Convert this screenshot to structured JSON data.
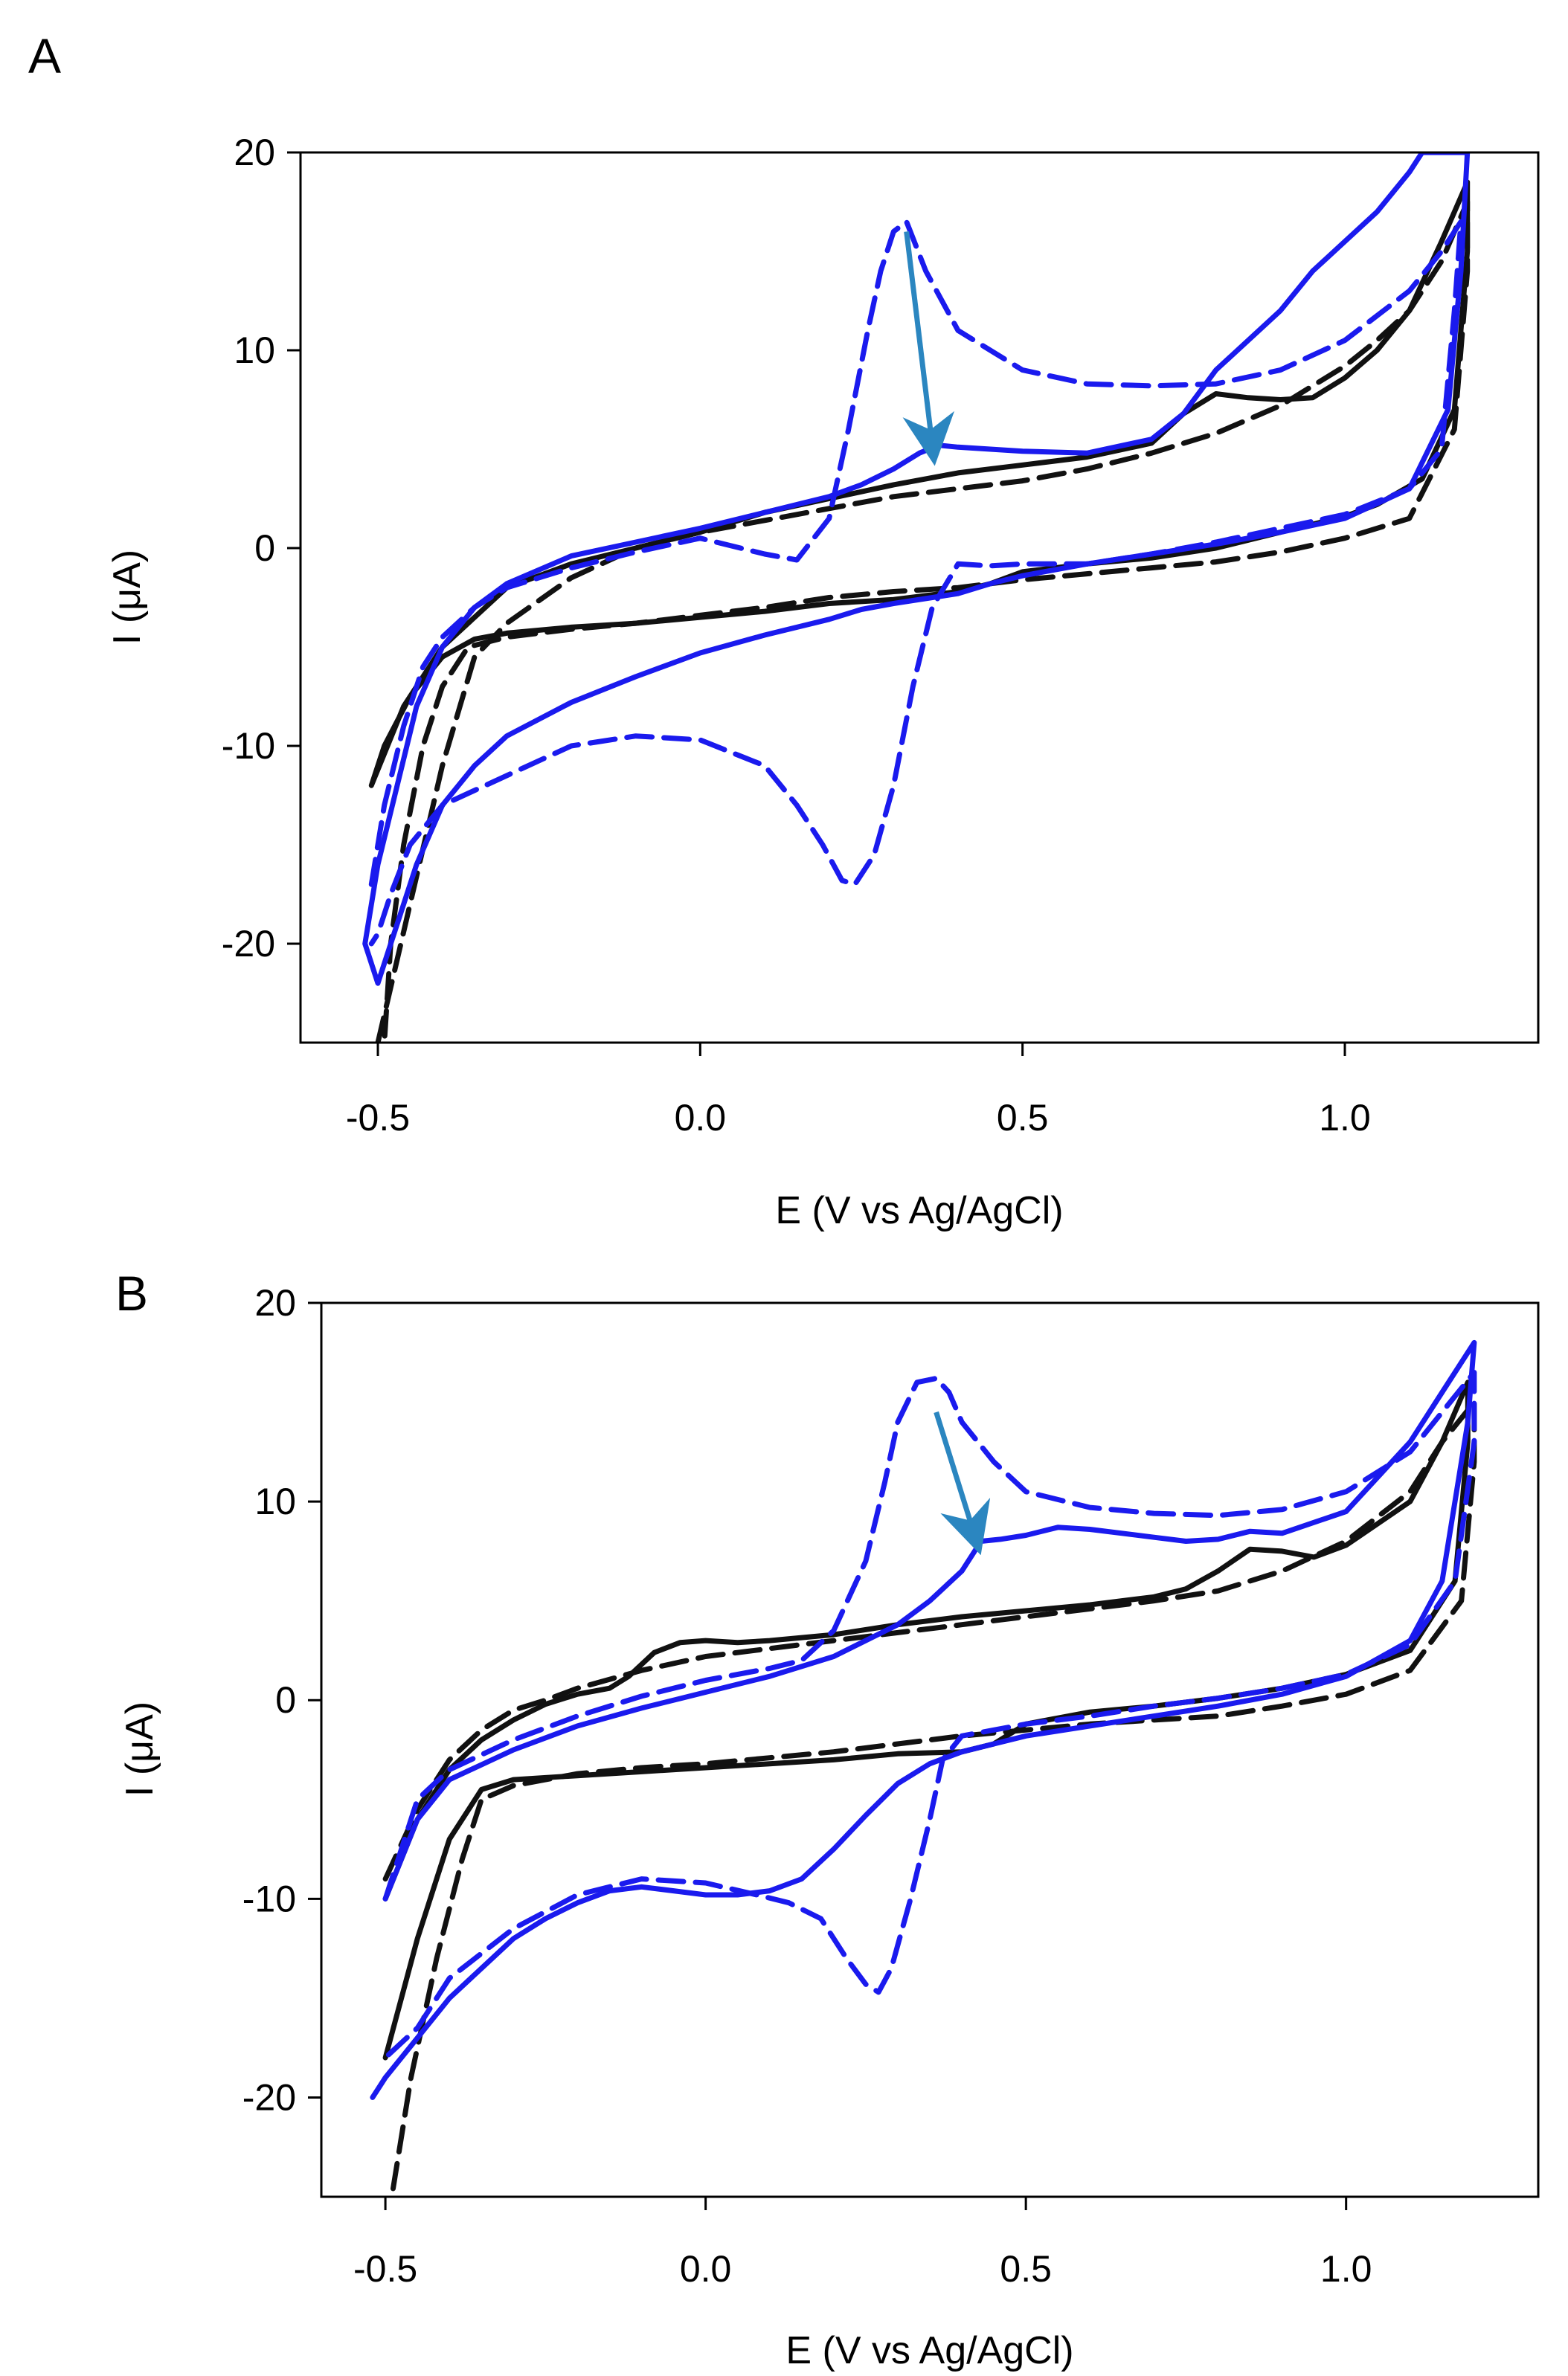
{
  "colors": {
    "black_trace": "#111111",
    "blue_trace": "#1a1aee",
    "arrow": "#2b86c0"
  },
  "chart_data": [
    {
      "type": "line",
      "panel_label": "A",
      "xlabel": "E (V vs Ag/AgCl)",
      "ylabel": "I (μA)",
      "xlim": [
        -0.62,
        1.3
      ],
      "ylim": [
        -25,
        20
      ],
      "xticks": [
        -0.5,
        0.0,
        0.5,
        1.0
      ],
      "xtick_labels": [
        "-0.5",
        "0.0",
        "0.5",
        "1.0"
      ],
      "yticks": [
        20,
        10,
        0,
        -10,
        -20
      ],
      "ytick_labels": [
        "20",
        "10",
        "0",
        "-10",
        "-20"
      ],
      "arrow": {
        "from": [
          0.32,
          16
        ],
        "to": [
          0.36,
          5.2
        ]
      },
      "series": [
        {
          "name": "black solid",
          "color": "#111111",
          "dash": "solid",
          "x": [
            -0.51,
            -0.46,
            -0.4,
            -0.3,
            -0.2,
            -0.1,
            0.0,
            0.1,
            0.2,
            0.3,
            0.4,
            0.5,
            0.6,
            0.7,
            0.75,
            0.8,
            0.85,
            0.9,
            0.95,
            1.0,
            1.05,
            1.1,
            1.15,
            1.19,
            1.19,
            1.17,
            1.12,
            1.05,
            1.0,
            0.9,
            0.8,
            0.7,
            0.6,
            0.5,
            0.45,
            0.4,
            0.3,
            0.2,
            0.1,
            0.0,
            -0.1,
            -0.2,
            -0.3,
            -0.35,
            -0.4,
            -0.45,
            -0.49,
            -0.51
          ],
          "y": [
            -12,
            -8,
            -5,
            -2,
            -0.8,
            0,
            0.8,
            1.8,
            2.5,
            3.2,
            3.8,
            4.2,
            4.6,
            5.3,
            6.8,
            7.8,
            7.6,
            7.5,
            7.6,
            8.6,
            10,
            12,
            15.5,
            18.5,
            15,
            7,
            3.5,
            2.2,
            1.6,
            0.8,
            0,
            -0.5,
            -0.8,
            -1.2,
            -1.8,
            -2.2,
            -2.6,
            -2.8,
            -3.2,
            -3.5,
            -3.8,
            -4.0,
            -4.3,
            -4.6,
            -5.5,
            -7.5,
            -10,
            -12
          ]
        },
        {
          "name": "black dashed",
          "color": "#111111",
          "dash": "dashed",
          "x": [
            -0.5,
            -0.45,
            -0.4,
            -0.35,
            -0.3,
            -0.2,
            -0.1,
            0.0,
            0.1,
            0.2,
            0.3,
            0.4,
            0.5,
            0.6,
            0.7,
            0.8,
            0.9,
            1.0,
            1.05,
            1.1,
            1.15,
            1.19,
            1.19,
            1.17,
            1.1,
            1.0,
            0.9,
            0.8,
            0.7,
            0.6,
            0.5,
            0.4,
            0.3,
            0.2,
            0.1,
            0.0,
            -0.1,
            -0.2,
            -0.3,
            -0.36,
            -0.4,
            -0.43,
            -0.46,
            -0.48,
            -0.49
          ],
          "y": [
            -25,
            -18,
            -11,
            -5.5,
            -3.8,
            -1.5,
            0,
            0.8,
            1.4,
            2.0,
            2.6,
            3.0,
            3.4,
            4.0,
            4.8,
            5.8,
            7.2,
            9.2,
            10.5,
            12,
            14.5,
            17.5,
            14,
            6,
            1.5,
            0.5,
            -0.2,
            -0.7,
            -1.0,
            -1.3,
            -1.6,
            -2.0,
            -2.2,
            -2.5,
            -3.0,
            -3.4,
            -3.8,
            -4.1,
            -4.5,
            -5,
            -7,
            -10,
            -15,
            -20,
            -25
          ]
        },
        {
          "name": "blue solid",
          "color": "#1a1aee",
          "dash": "solid",
          "x": [
            -0.52,
            -0.5,
            -0.47,
            -0.44,
            -0.4,
            -0.35,
            -0.3,
            -0.2,
            -0.1,
            0.0,
            0.1,
            0.2,
            0.25,
            0.3,
            0.34,
            0.37,
            0.4,
            0.5,
            0.6,
            0.7,
            0.75,
            0.8,
            0.9,
            0.95,
            1.0,
            1.05,
            1.1,
            1.12,
            1.19,
            1.18,
            1.16,
            1.1,
            1.0,
            0.9,
            0.8,
            0.7,
            0.6,
            0.5,
            0.45,
            0.4,
            0.3,
            0.25,
            0.2,
            0.1,
            0.0,
            -0.1,
            -0.2,
            -0.3,
            -0.35,
            -0.4,
            -0.44,
            -0.47,
            -0.5,
            -0.52
          ],
          "y": [
            -20,
            -16,
            -12,
            -8,
            -5,
            -3,
            -1.8,
            -0.4,
            0.3,
            1.0,
            1.8,
            2.6,
            3.2,
            4.0,
            4.8,
            5.2,
            5.1,
            4.9,
            4.8,
            5.5,
            6.8,
            9,
            12,
            14,
            15.5,
            17,
            19,
            20,
            20,
            14,
            7,
            3,
            1.5,
            0.8,
            0.2,
            -0.3,
            -0.8,
            -1.4,
            -1.8,
            -2.3,
            -2.8,
            -3.1,
            -3.6,
            -4.4,
            -5.3,
            -6.5,
            -7.8,
            -9.5,
            -11,
            -13,
            -16,
            -19,
            -22,
            -20
          ]
        },
        {
          "name": "blue dashed",
          "color": "#1a1aee",
          "dash": "dashed",
          "x": [
            -0.51,
            -0.49,
            -0.46,
            -0.43,
            -0.4,
            -0.35,
            -0.3,
            -0.2,
            -0.1,
            0.0,
            0.1,
            0.15,
            0.2,
            0.23,
            0.26,
            0.28,
            0.3,
            0.32,
            0.35,
            0.4,
            0.5,
            0.6,
            0.7,
            0.8,
            0.9,
            1.0,
            1.1,
            1.15,
            1.18,
            1.17,
            1.15,
            1.1,
            1.0,
            0.9,
            0.8,
            0.7,
            0.6,
            0.5,
            0.45,
            0.4,
            0.36,
            0.33,
            0.3,
            0.27,
            0.24,
            0.22,
            0.19,
            0.15,
            0.1,
            0.0,
            -0.1,
            -0.2,
            -0.3,
            -0.4,
            -0.45,
            -0.48,
            -0.5,
            -0.51
          ],
          "y": [
            -17,
            -13,
            -9,
            -6,
            -4.5,
            -3,
            -2,
            -1,
            -0.2,
            0.5,
            -0.3,
            -0.6,
            1.5,
            6,
            11,
            14,
            16,
            16.5,
            14,
            11,
            9,
            8.3,
            8.2,
            8.3,
            9,
            10.5,
            13,
            15,
            16.5,
            12,
            5,
            3,
            1.7,
            1,
            0.3,
            -0.3,
            -0.8,
            -0.8,
            -0.9,
            -0.8,
            -3,
            -7,
            -12,
            -15.5,
            -17,
            -16.8,
            -15,
            -13,
            -11,
            -9.7,
            -9.5,
            -10,
            -11.5,
            -13,
            -15,
            -17.5,
            -19.5,
            -20
          ]
        }
      ]
    },
    {
      "type": "line",
      "panel_label": "B",
      "xlabel": "E (V vs Ag/AgCl)",
      "ylabel": "I (μA)",
      "xlim": [
        -0.6,
        1.3
      ],
      "ylim": [
        -25,
        20
      ],
      "xticks": [
        -0.5,
        0.0,
        0.5,
        1.0
      ],
      "xtick_labels": [
        "-0.5",
        "0.0",
        "0.5",
        "1.0"
      ],
      "yticks": [
        20,
        10,
        0,
        -10,
        -20
      ],
      "ytick_labels": [
        "20",
        "10",
        "0",
        "-10",
        "-20"
      ],
      "arrow": {
        "from": [
          0.36,
          14.5
        ],
        "to": [
          0.42,
          8.3
        ]
      },
      "series": [
        {
          "name": "black solid",
          "color": "#111111",
          "dash": "solid",
          "x": [
            -0.5,
            -0.45,
            -0.4,
            -0.35,
            -0.3,
            -0.25,
            -0.2,
            -0.15,
            -0.12,
            -0.08,
            -0.04,
            0.0,
            0.05,
            0.1,
            0.2,
            0.3,
            0.4,
            0.5,
            0.6,
            0.7,
            0.75,
            0.8,
            0.85,
            0.9,
            0.95,
            1.0,
            1.1,
            1.15,
            1.19,
            1.19,
            1.17,
            1.1,
            1.0,
            0.9,
            0.8,
            0.7,
            0.6,
            0.5,
            0.45,
            0.4,
            0.3,
            0.2,
            0.1,
            0.0,
            -0.1,
            -0.2,
            -0.3,
            -0.35,
            -0.4,
            -0.45,
            -0.5
          ],
          "y": [
            -10,
            -6,
            -3.5,
            -2,
            -1,
            -0.2,
            0.3,
            0.6,
            1.2,
            2.4,
            2.9,
            3.0,
            2.9,
            3.0,
            3.3,
            3.8,
            4.2,
            4.5,
            4.8,
            5.2,
            5.6,
            6.5,
            7.6,
            7.5,
            7.2,
            7.8,
            10,
            13,
            16,
            13,
            6,
            2.5,
            1.3,
            0.6,
            0.1,
            -0.3,
            -0.6,
            -1.2,
            -2.2,
            -2.6,
            -2.7,
            -3.0,
            -3.2,
            -3.4,
            -3.6,
            -3.8,
            -4.0,
            -4.5,
            -7,
            -12,
            -18
          ]
        },
        {
          "name": "black dashed",
          "color": "#111111",
          "dash": "dashed",
          "x": [
            -0.5,
            -0.45,
            -0.4,
            -0.35,
            -0.3,
            -0.25,
            -0.2,
            -0.1,
            0.0,
            0.1,
            0.2,
            0.3,
            0.4,
            0.5,
            0.6,
            0.7,
            0.8,
            0.9,
            1.0,
            1.1,
            1.15,
            1.2,
            1.2,
            1.18,
            1.1,
            1.0,
            0.9,
            0.8,
            0.7,
            0.6,
            0.5,
            0.4,
            0.3,
            0.2,
            0.1,
            0.0,
            -0.1,
            -0.2,
            -0.3,
            -0.35,
            -0.38,
            -0.42,
            -0.46,
            -0.49
          ],
          "y": [
            -9,
            -5.5,
            -3,
            -1.5,
            -0.5,
            0,
            0.6,
            1.5,
            2.2,
            2.6,
            3.0,
            3.4,
            3.8,
            4.2,
            4.6,
            5.0,
            5.5,
            6.5,
            8,
            10.5,
            13,
            15,
            12,
            5,
            1.5,
            0.3,
            -0.3,
            -0.8,
            -1.0,
            -1.2,
            -1.5,
            -1.8,
            -2.2,
            -2.6,
            -2.9,
            -3.2,
            -3.4,
            -3.7,
            -4.3,
            -5,
            -8,
            -13,
            -19,
            -25
          ]
        },
        {
          "name": "blue solid",
          "color": "#1a1aee",
          "dash": "solid",
          "x": [
            -0.5,
            -0.45,
            -0.4,
            -0.3,
            -0.2,
            -0.1,
            0.0,
            0.1,
            0.2,
            0.3,
            0.35,
            0.4,
            0.43,
            0.46,
            0.5,
            0.55,
            0.6,
            0.65,
            0.7,
            0.75,
            0.8,
            0.85,
            0.9,
            1.0,
            1.1,
            1.15,
            1.2,
            1.19,
            1.15,
            1.1,
            1.0,
            0.9,
            0.8,
            0.7,
            0.6,
            0.5,
            0.45,
            0.4,
            0.35,
            0.3,
            0.25,
            0.2,
            0.15,
            0.1,
            0.05,
            0.0,
            -0.05,
            -0.1,
            -0.15,
            -0.2,
            -0.25,
            -0.3,
            -0.35,
            -0.4,
            -0.45,
            -0.5,
            -0.52
          ],
          "y": [
            -10,
            -6,
            -4,
            -2.5,
            -1.3,
            -0.4,
            0.4,
            1.2,
            2.2,
            3.8,
            5.0,
            6.5,
            8.0,
            8.1,
            8.3,
            8.7,
            8.6,
            8.4,
            8.2,
            8.0,
            8.1,
            8.5,
            8.4,
            9.5,
            13,
            15.5,
            18,
            14,
            6,
            3,
            1.2,
            0.3,
            -0.3,
            -0.8,
            -1.3,
            -1.8,
            -2.2,
            -2.6,
            -3.2,
            -4.2,
            -5.8,
            -7.5,
            -9.0,
            -9.6,
            -9.8,
            -9.8,
            -9.6,
            -9.4,
            -9.6,
            -10.2,
            -11,
            -12,
            -13.5,
            -15,
            -17,
            -19,
            -20
          ]
        },
        {
          "name": "blue dashed",
          "color": "#1a1aee",
          "dash": "dashed",
          "x": [
            -0.5,
            -0.45,
            -0.4,
            -0.3,
            -0.2,
            -0.1,
            0.0,
            0.1,
            0.15,
            0.2,
            0.25,
            0.28,
            0.3,
            0.33,
            0.36,
            0.38,
            0.4,
            0.45,
            0.5,
            0.6,
            0.7,
            0.8,
            0.9,
            1.0,
            1.1,
            1.15,
            1.2,
            1.2,
            1.17,
            1.1,
            1.0,
            0.9,
            0.8,
            0.7,
            0.6,
            0.5,
            0.45,
            0.4,
            0.37,
            0.35,
            0.32,
            0.29,
            0.27,
            0.25,
            0.22,
            0.18,
            0.13,
            0.08,
            0.0,
            -0.1,
            -0.2,
            -0.3,
            -0.4,
            -0.45,
            -0.5
          ],
          "y": [
            -10,
            -5,
            -3.5,
            -2,
            -0.8,
            0.2,
            1.0,
            1.6,
            2.0,
            3.5,
            7,
            11,
            14,
            16,
            16.2,
            15.5,
            14,
            12,
            10.5,
            9.7,
            9.4,
            9.3,
            9.6,
            10.5,
            12.5,
            14.5,
            16.5,
            13,
            6,
            2.8,
            1.3,
            0.6,
            0.1,
            -0.3,
            -0.8,
            -1.2,
            -1.5,
            -1.8,
            -3,
            -6,
            -10,
            -13.5,
            -14.7,
            -14.3,
            -13,
            -11,
            -10.2,
            -9.8,
            -9.2,
            -9.0,
            -9.8,
            -11.5,
            -14,
            -16.5,
            -18
          ]
        }
      ]
    }
  ]
}
